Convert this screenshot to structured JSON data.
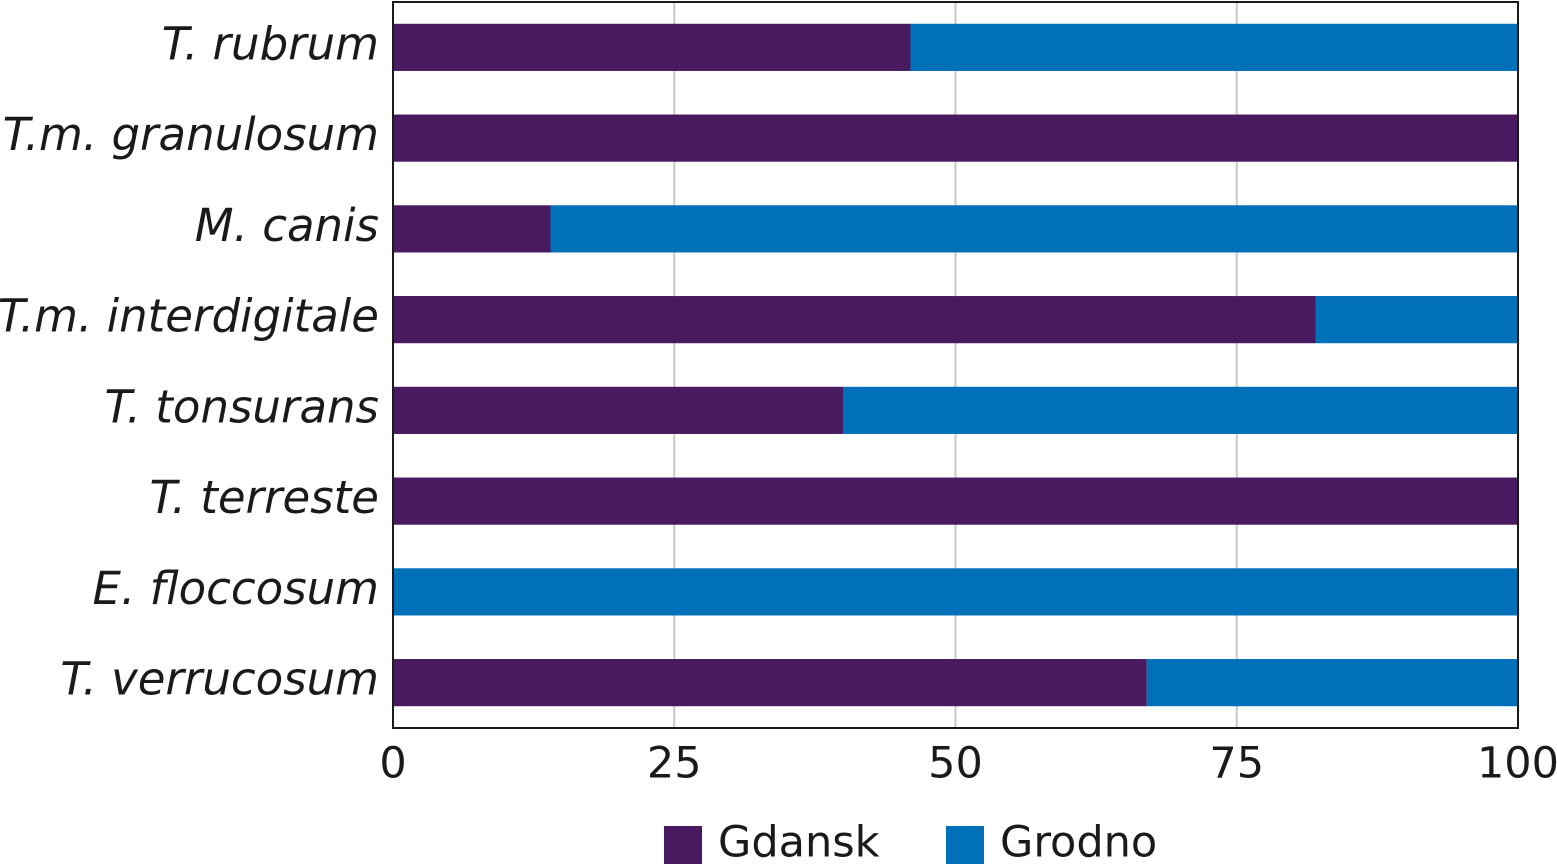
{
  "chart_data": {
    "type": "bar",
    "orientation": "horizontal",
    "stacked": true,
    "categories": [
      "T. rubrum",
      "T.m. granulosum",
      "M. canis",
      "T.m. interdigitale",
      "T. tonsurans",
      "T. terreste",
      "E. floccosum",
      "T. verrucosum"
    ],
    "series": [
      {
        "name": "Gdansk",
        "color": "#4a1a60",
        "values": [
          46,
          100,
          14,
          82,
          40,
          100,
          0,
          67
        ]
      },
      {
        "name": "Grodno",
        "color": "#0070b8",
        "values": [
          54,
          0,
          86,
          18,
          60,
          0,
          100,
          33
        ]
      }
    ],
    "xlim": [
      0,
      100
    ],
    "xticks": [
      0,
      25,
      50,
      75,
      100
    ],
    "grid": true,
    "legend": "bottom"
  }
}
